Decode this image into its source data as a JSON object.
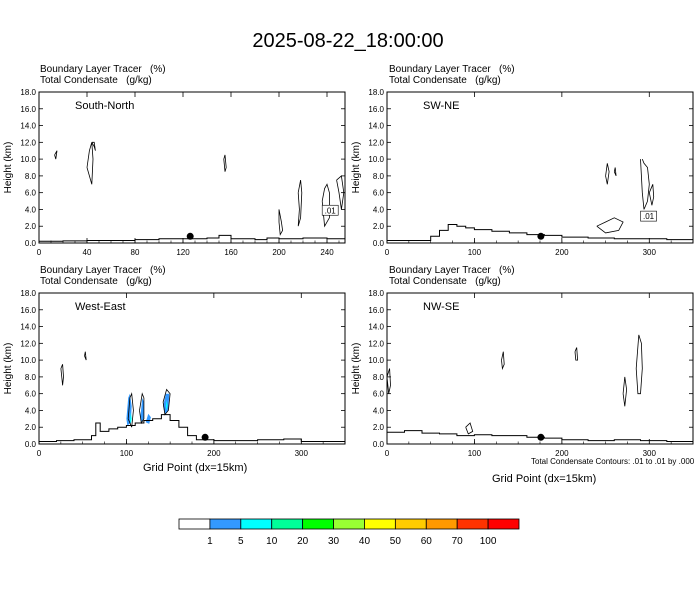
{
  "title": "2025-08-22_18:00:00",
  "footnote": "Total Condensate Contours: .01 to .01 by .000",
  "chart_data": [
    {
      "type": "cross-section",
      "header_line1": "Boundary Layer Tracer   (%)",
      "header_line2": "Total Condensate   (g/kg)",
      "panel_label": "South-North",
      "ylabel": "Height (km)",
      "xlabel": "",
      "xlim": [
        0,
        255
      ],
      "ylim": [
        0,
        18
      ],
      "x_ticks": [
        "0",
        "40",
        "80",
        "120",
        "160",
        "200",
        "240"
      ],
      "y_ticks": [
        "0.0",
        "2.0",
        "4.0",
        "6.0",
        "8.0",
        "10.0",
        "12.0",
        "14.0",
        "16.0",
        "18.0"
      ],
      "contour_label": ".01",
      "marker_x": 126,
      "terrain": [
        [
          0,
          0.2
        ],
        [
          20,
          0.25
        ],
        [
          40,
          0.3
        ],
        [
          60,
          0.3
        ],
        [
          80,
          0.4
        ],
        [
          100,
          0.5
        ],
        [
          120,
          0.5
        ],
        [
          140,
          0.6
        ],
        [
          150,
          0.9
        ],
        [
          160,
          0.5
        ],
        [
          180,
          0.4
        ],
        [
          190,
          0.6
        ],
        [
          200,
          0.5
        ],
        [
          220,
          0.6
        ],
        [
          240,
          0.5
        ],
        [
          255,
          0.4
        ]
      ]
    },
    {
      "type": "cross-section",
      "header_line1": "Boundary Layer Tracer   (%)",
      "header_line2": "Total Condensate   (g/kg)",
      "panel_label": "SW-NE",
      "ylabel": "Height (km)",
      "xlabel": "",
      "xlim": [
        0,
        350
      ],
      "ylim": [
        0,
        18
      ],
      "x_ticks": [
        "0",
        "100",
        "200",
        "300"
      ],
      "y_ticks": [
        "0.0",
        "2.0",
        "4.0",
        "6.0",
        "8.0",
        "10.0",
        "12.0",
        "14.0",
        "16.0",
        "18.0"
      ],
      "contour_label": ".01",
      "marker_x": 176,
      "terrain": [
        [
          0,
          0.3
        ],
        [
          30,
          0.3
        ],
        [
          50,
          0.8
        ],
        [
          60,
          1.5
        ],
        [
          70,
          2.2
        ],
        [
          80,
          2.0
        ],
        [
          90,
          1.8
        ],
        [
          100,
          1.6
        ],
        [
          120,
          1.4
        ],
        [
          140,
          1.2
        ],
        [
          160,
          1.0
        ],
        [
          180,
          0.9
        ],
        [
          200,
          0.7
        ],
        [
          230,
          0.6
        ],
        [
          260,
          0.5
        ],
        [
          290,
          0.5
        ],
        [
          320,
          0.4
        ],
        [
          350,
          0.4
        ]
      ]
    },
    {
      "type": "cross-section",
      "header_line1": "Boundary Layer Tracer   (%)",
      "header_line2": "Total Condensate   (g/kg)",
      "panel_label": "West-East",
      "ylabel": "Height (km)",
      "xlabel": "Grid Point (dx=15km)",
      "xlim": [
        0,
        350
      ],
      "ylim": [
        0,
        18
      ],
      "x_ticks": [
        "0",
        "100",
        "200",
        "300"
      ],
      "y_ticks": [
        "0.0",
        "2.0",
        "4.0",
        "6.0",
        "8.0",
        "10.0",
        "12.0",
        "14.0",
        "16.0",
        "18.0"
      ],
      "contour_label": "",
      "marker_x": 190,
      "terrain": [
        [
          0,
          0.3
        ],
        [
          20,
          0.4
        ],
        [
          40,
          0.5
        ],
        [
          60,
          1.0
        ],
        [
          65,
          2.5
        ],
        [
          70,
          1.5
        ],
        [
          80,
          1.8
        ],
        [
          90,
          2.0
        ],
        [
          100,
          2.2
        ],
        [
          110,
          2.5
        ],
        [
          120,
          2.8
        ],
        [
          130,
          3.0
        ],
        [
          140,
          3.5
        ],
        [
          150,
          2.8
        ],
        [
          160,
          2.0
        ],
        [
          170,
          1.0
        ],
        [
          180,
          0.5
        ],
        [
          200,
          0.4
        ],
        [
          250,
          0.5
        ],
        [
          280,
          0.6
        ],
        [
          300,
          0.3
        ],
        [
          350,
          0.2
        ]
      ]
    },
    {
      "type": "cross-section",
      "header_line1": "Boundary Layer Tracer   (%)",
      "header_line2": "Total Condensate   (g/kg)",
      "panel_label": "NW-SE",
      "ylabel": "Height (km)",
      "xlabel": "Grid Point (dx=15km)",
      "xlim": [
        0,
        350
      ],
      "ylim": [
        0,
        18
      ],
      "x_ticks": [
        "0",
        "100",
        "200",
        "300"
      ],
      "y_ticks": [
        "0.0",
        "2.0",
        "4.0",
        "6.0",
        "8.0",
        "10.0",
        "12.0",
        "14.0",
        "16.0",
        "18.0"
      ],
      "contour_label": "",
      "marker_x": 176,
      "terrain": [
        [
          0,
          1.4
        ],
        [
          20,
          1.6
        ],
        [
          40,
          1.3
        ],
        [
          60,
          1.2
        ],
        [
          80,
          1.0
        ],
        [
          100,
          1.1
        ],
        [
          120,
          1.0
        ],
        [
          140,
          1.0
        ],
        [
          160,
          0.8
        ],
        [
          180,
          0.7
        ],
        [
          200,
          0.5
        ],
        [
          230,
          0.4
        ],
        [
          260,
          0.5
        ],
        [
          290,
          0.4
        ],
        [
          320,
          0.3
        ],
        [
          350,
          0.3
        ]
      ]
    }
  ],
  "colorbar": {
    "labels": [
      "1",
      "5",
      "10",
      "20",
      "30",
      "40",
      "50",
      "60",
      "70",
      "100"
    ],
    "colors": [
      "#ffffff",
      "#3399ff",
      "#00ffff",
      "#00ff99",
      "#00ff00",
      "#99ff33",
      "#ffff00",
      "#ffcc00",
      "#ff9900",
      "#ff3300",
      "#ff0000"
    ]
  }
}
